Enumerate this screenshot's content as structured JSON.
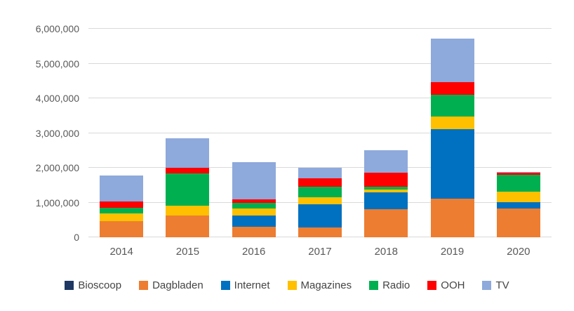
{
  "chart_data": {
    "type": "bar",
    "stacked": true,
    "title": "",
    "categories": [
      "2014",
      "2015",
      "2016",
      "2017",
      "2018",
      "2019",
      "2020"
    ],
    "series": [
      {
        "name": "Bioscoop",
        "color": "#1F3864",
        "values": [
          0,
          0,
          0,
          0,
          0,
          0,
          0
        ]
      },
      {
        "name": "Dagbladen",
        "color": "#ED7D31",
        "values": [
          470000,
          630000,
          300000,
          280000,
          810000,
          1110000,
          830000
        ]
      },
      {
        "name": "Internet",
        "color": "#0070C0",
        "values": [
          0,
          0,
          320000,
          670000,
          480000,
          2000000,
          180000
        ]
      },
      {
        "name": "Magazines",
        "color": "#FFC000",
        "values": [
          220000,
          280000,
          200000,
          200000,
          80000,
          360000,
          300000
        ]
      },
      {
        "name": "Radio",
        "color": "#00B050",
        "values": [
          160000,
          930000,
          180000,
          300000,
          90000,
          630000,
          480000
        ]
      },
      {
        "name": "OOH",
        "color": "#FF0000",
        "values": [
          180000,
          160000,
          100000,
          240000,
          400000,
          360000,
          60000
        ]
      },
      {
        "name": "TV",
        "color": "#8EA9DB",
        "values": [
          750000,
          850000,
          1070000,
          300000,
          650000,
          1250000,
          30000
        ]
      }
    ],
    "y_axis": {
      "min": 0,
      "max": 6000000,
      "tick_interval": 1000000,
      "tick_labels": [
        "0",
        "1,000,000",
        "2,000,000",
        "3,000,000",
        "4,000,000",
        "5,000,000",
        "6,000,000"
      ]
    },
    "x_axis_label": "",
    "y_axis_label": "",
    "grid": true,
    "legend_position": "bottom",
    "colors": {
      "background": "#FFFFFF",
      "gridline": "#D9D9D9",
      "axis_text": "#595959",
      "legend_text": "#444444"
    }
  }
}
